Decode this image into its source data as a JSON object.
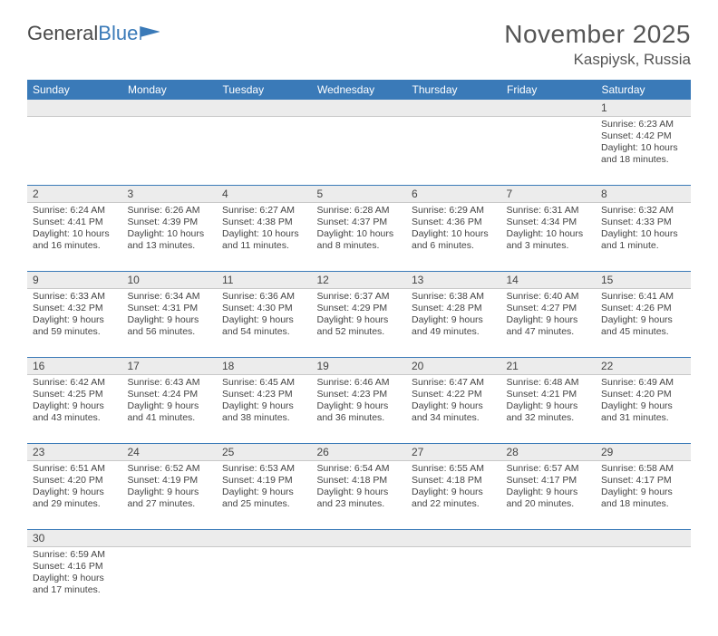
{
  "logo": {
    "text1": "General",
    "text2": "Blue"
  },
  "title": "November 2025",
  "location": "Kaspiysk, Russia",
  "weekdays": [
    "Sunday",
    "Monday",
    "Tuesday",
    "Wednesday",
    "Thursday",
    "Friday",
    "Saturday"
  ],
  "colors": {
    "header_bg": "#3a7ab8",
    "header_text": "#ffffff",
    "daynum_bg": "#ececec",
    "border": "#3a7ab8",
    "text": "#444444"
  },
  "weeks": [
    [
      null,
      null,
      null,
      null,
      null,
      null,
      {
        "n": "1",
        "sr": "Sunrise: 6:23 AM",
        "ss": "Sunset: 4:42 PM",
        "dl": "Daylight: 10 hours and 18 minutes."
      }
    ],
    [
      {
        "n": "2",
        "sr": "Sunrise: 6:24 AM",
        "ss": "Sunset: 4:41 PM",
        "dl": "Daylight: 10 hours and 16 minutes."
      },
      {
        "n": "3",
        "sr": "Sunrise: 6:26 AM",
        "ss": "Sunset: 4:39 PM",
        "dl": "Daylight: 10 hours and 13 minutes."
      },
      {
        "n": "4",
        "sr": "Sunrise: 6:27 AM",
        "ss": "Sunset: 4:38 PM",
        "dl": "Daylight: 10 hours and 11 minutes."
      },
      {
        "n": "5",
        "sr": "Sunrise: 6:28 AM",
        "ss": "Sunset: 4:37 PM",
        "dl": "Daylight: 10 hours and 8 minutes."
      },
      {
        "n": "6",
        "sr": "Sunrise: 6:29 AM",
        "ss": "Sunset: 4:36 PM",
        "dl": "Daylight: 10 hours and 6 minutes."
      },
      {
        "n": "7",
        "sr": "Sunrise: 6:31 AM",
        "ss": "Sunset: 4:34 PM",
        "dl": "Daylight: 10 hours and 3 minutes."
      },
      {
        "n": "8",
        "sr": "Sunrise: 6:32 AM",
        "ss": "Sunset: 4:33 PM",
        "dl": "Daylight: 10 hours and 1 minute."
      }
    ],
    [
      {
        "n": "9",
        "sr": "Sunrise: 6:33 AM",
        "ss": "Sunset: 4:32 PM",
        "dl": "Daylight: 9 hours and 59 minutes."
      },
      {
        "n": "10",
        "sr": "Sunrise: 6:34 AM",
        "ss": "Sunset: 4:31 PM",
        "dl": "Daylight: 9 hours and 56 minutes."
      },
      {
        "n": "11",
        "sr": "Sunrise: 6:36 AM",
        "ss": "Sunset: 4:30 PM",
        "dl": "Daylight: 9 hours and 54 minutes."
      },
      {
        "n": "12",
        "sr": "Sunrise: 6:37 AM",
        "ss": "Sunset: 4:29 PM",
        "dl": "Daylight: 9 hours and 52 minutes."
      },
      {
        "n": "13",
        "sr": "Sunrise: 6:38 AM",
        "ss": "Sunset: 4:28 PM",
        "dl": "Daylight: 9 hours and 49 minutes."
      },
      {
        "n": "14",
        "sr": "Sunrise: 6:40 AM",
        "ss": "Sunset: 4:27 PM",
        "dl": "Daylight: 9 hours and 47 minutes."
      },
      {
        "n": "15",
        "sr": "Sunrise: 6:41 AM",
        "ss": "Sunset: 4:26 PM",
        "dl": "Daylight: 9 hours and 45 minutes."
      }
    ],
    [
      {
        "n": "16",
        "sr": "Sunrise: 6:42 AM",
        "ss": "Sunset: 4:25 PM",
        "dl": "Daylight: 9 hours and 43 minutes."
      },
      {
        "n": "17",
        "sr": "Sunrise: 6:43 AM",
        "ss": "Sunset: 4:24 PM",
        "dl": "Daylight: 9 hours and 41 minutes."
      },
      {
        "n": "18",
        "sr": "Sunrise: 6:45 AM",
        "ss": "Sunset: 4:23 PM",
        "dl": "Daylight: 9 hours and 38 minutes."
      },
      {
        "n": "19",
        "sr": "Sunrise: 6:46 AM",
        "ss": "Sunset: 4:23 PM",
        "dl": "Daylight: 9 hours and 36 minutes."
      },
      {
        "n": "20",
        "sr": "Sunrise: 6:47 AM",
        "ss": "Sunset: 4:22 PM",
        "dl": "Daylight: 9 hours and 34 minutes."
      },
      {
        "n": "21",
        "sr": "Sunrise: 6:48 AM",
        "ss": "Sunset: 4:21 PM",
        "dl": "Daylight: 9 hours and 32 minutes."
      },
      {
        "n": "22",
        "sr": "Sunrise: 6:49 AM",
        "ss": "Sunset: 4:20 PM",
        "dl": "Daylight: 9 hours and 31 minutes."
      }
    ],
    [
      {
        "n": "23",
        "sr": "Sunrise: 6:51 AM",
        "ss": "Sunset: 4:20 PM",
        "dl": "Daylight: 9 hours and 29 minutes."
      },
      {
        "n": "24",
        "sr": "Sunrise: 6:52 AM",
        "ss": "Sunset: 4:19 PM",
        "dl": "Daylight: 9 hours and 27 minutes."
      },
      {
        "n": "25",
        "sr": "Sunrise: 6:53 AM",
        "ss": "Sunset: 4:19 PM",
        "dl": "Daylight: 9 hours and 25 minutes."
      },
      {
        "n": "26",
        "sr": "Sunrise: 6:54 AM",
        "ss": "Sunset: 4:18 PM",
        "dl": "Daylight: 9 hours and 23 minutes."
      },
      {
        "n": "27",
        "sr": "Sunrise: 6:55 AM",
        "ss": "Sunset: 4:18 PM",
        "dl": "Daylight: 9 hours and 22 minutes."
      },
      {
        "n": "28",
        "sr": "Sunrise: 6:57 AM",
        "ss": "Sunset: 4:17 PM",
        "dl": "Daylight: 9 hours and 20 minutes."
      },
      {
        "n": "29",
        "sr": "Sunrise: 6:58 AM",
        "ss": "Sunset: 4:17 PM",
        "dl": "Daylight: 9 hours and 18 minutes."
      }
    ],
    [
      {
        "n": "30",
        "sr": "Sunrise: 6:59 AM",
        "ss": "Sunset: 4:16 PM",
        "dl": "Daylight: 9 hours and 17 minutes."
      },
      null,
      null,
      null,
      null,
      null,
      null
    ]
  ]
}
